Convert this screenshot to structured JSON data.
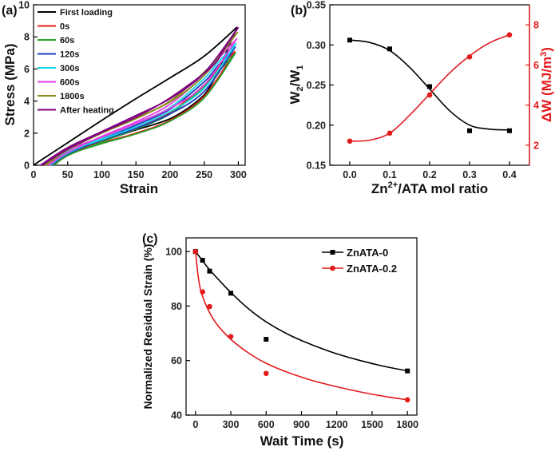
{
  "chart_data": [
    {
      "panel": "(a)",
      "type": "line",
      "title": "",
      "xlabel": "Strain",
      "ylabel": "Stress (MPa)",
      "xlim": [
        0,
        310
      ],
      "ylim": [
        0,
        10
      ],
      "xticks": [
        0,
        50,
        100,
        150,
        200,
        250,
        300
      ],
      "yticks": [
        0,
        2,
        4,
        6,
        8,
        10
      ],
      "legend_position": "top-left",
      "series": [
        {
          "name": "First loading",
          "color": "#000000",
          "load": [
            [
              0,
              0
            ],
            [
              12,
              0.35
            ],
            [
              50,
              1.4
            ],
            [
              100,
              2.8
            ],
            [
              150,
              4.15
            ],
            [
              200,
              5.45
            ],
            [
              250,
              6.8
            ],
            [
              298,
              8.6
            ]
          ],
          "unload": [
            [
              298,
              8.6
            ],
            [
              280,
              6.8
            ],
            [
              260,
              5.0
            ],
            [
              240,
              4.0
            ],
            [
              200,
              2.9
            ],
            [
              150,
              2.2
            ],
            [
              100,
              1.5
            ],
            [
              50,
              0.8
            ],
            [
              20,
              0.2
            ],
            [
              15,
              0
            ]
          ]
        },
        {
          "name": "0s",
          "color": "#e31a1c",
          "load": [
            [
              28,
              0
            ],
            [
              50,
              0.7
            ],
            [
              100,
              1.4
            ],
            [
              150,
              2.0
            ],
            [
              200,
              2.8
            ],
            [
              250,
              4.3
            ],
            [
              295,
              7.1
            ]
          ],
          "unload": [
            [
              295,
              7.1
            ],
            [
              270,
              6.0
            ],
            [
              250,
              5.0
            ],
            [
              200,
              3.3
            ],
            [
              150,
              2.3
            ],
            [
              100,
              1.5
            ],
            [
              50,
              0.6
            ],
            [
              30,
              0
            ]
          ]
        },
        {
          "name": "60s",
          "color": "#2ca02c",
          "load": [
            [
              28,
              0
            ],
            [
              50,
              0.65
            ],
            [
              100,
              1.35
            ],
            [
              150,
              1.95
            ],
            [
              200,
              2.75
            ],
            [
              250,
              4.2
            ],
            [
              296,
              7.0
            ]
          ],
          "unload": [
            [
              296,
              7.0
            ],
            [
              270,
              5.8
            ],
            [
              250,
              4.9
            ],
            [
              200,
              3.2
            ],
            [
              150,
              2.25
            ],
            [
              100,
              1.45
            ],
            [
              50,
              0.6
            ],
            [
              30,
              0
            ]
          ]
        },
        {
          "name": "120s",
          "color": "#1f3bbf",
          "load": [
            [
              24,
              0
            ],
            [
              50,
              0.8
            ],
            [
              100,
              1.55
            ],
            [
              150,
              2.3
            ],
            [
              200,
              3.2
            ],
            [
              250,
              4.6
            ],
            [
              296,
              7.4
            ]
          ],
          "unload": [
            [
              296,
              7.4
            ],
            [
              270,
              6.2
            ],
            [
              250,
              5.2
            ],
            [
              200,
              3.5
            ],
            [
              150,
              2.5
            ],
            [
              100,
              1.6
            ],
            [
              50,
              0.7
            ],
            [
              26,
              0
            ]
          ]
        },
        {
          "name": "300s",
          "color": "#17d7e6",
          "load": [
            [
              22,
              0
            ],
            [
              50,
              0.85
            ],
            [
              100,
              1.6
            ],
            [
              150,
              2.4
            ],
            [
              200,
              3.35
            ],
            [
              250,
              4.8
            ],
            [
              297,
              7.6
            ]
          ],
          "unload": [
            [
              297,
              7.6
            ],
            [
              270,
              6.4
            ],
            [
              250,
              5.4
            ],
            [
              200,
              3.6
            ],
            [
              150,
              2.6
            ],
            [
              100,
              1.7
            ],
            [
              50,
              0.75
            ],
            [
              24,
              0
            ]
          ]
        },
        {
          "name": "600s",
          "color": "#e23fe0",
          "load": [
            [
              20,
              0
            ],
            [
              50,
              0.95
            ],
            [
              100,
              1.75
            ],
            [
              150,
              2.6
            ],
            [
              200,
              3.55
            ],
            [
              250,
              5.0
            ],
            [
              298,
              7.9
            ]
          ],
          "unload": [
            [
              298,
              7.9
            ],
            [
              270,
              6.6
            ],
            [
              250,
              5.6
            ],
            [
              200,
              3.8
            ],
            [
              150,
              2.7
            ],
            [
              100,
              1.8
            ],
            [
              50,
              0.8
            ],
            [
              22,
              0
            ]
          ]
        },
        {
          "name": "1800s",
          "color": "#8a8a1c",
          "load": [
            [
              16,
              0
            ],
            [
              50,
              1.05
            ],
            [
              100,
              2.0
            ],
            [
              150,
              2.95
            ],
            [
              200,
              3.95
            ],
            [
              250,
              5.6
            ],
            [
              299,
              8.3
            ]
          ],
          "unload": [
            [
              299,
              8.3
            ],
            [
              275,
              7.0
            ],
            [
              250,
              5.8
            ],
            [
              200,
              4.0
            ],
            [
              150,
              2.9
            ],
            [
              100,
              2.0
            ],
            [
              50,
              0.95
            ],
            [
              18,
              0
            ]
          ]
        },
        {
          "name": "After heating",
          "color": "#800080",
          "load": [
            [
              10,
              0
            ],
            [
              50,
              1.1
            ],
            [
              100,
              2.1
            ],
            [
              150,
              3.1
            ],
            [
              200,
              4.15
            ],
            [
              250,
              5.75
            ],
            [
              300,
              8.6
            ]
          ],
          "unload": [
            [
              300,
              8.6
            ],
            [
              280,
              7.3
            ],
            [
              260,
              6.1
            ],
            [
              200,
              4.2
            ],
            [
              150,
              3.0
            ],
            [
              100,
              2.05
            ],
            [
              50,
              1.0
            ],
            [
              12,
              0
            ]
          ]
        }
      ]
    },
    {
      "panel": "(b)",
      "type": "line",
      "title": "",
      "xlabel": "Zn2+/ATA mol ratio",
      "ylabel_left": "W2/W1",
      "ylabel_right": "ΔW (MJ/m3)",
      "x": [
        0.0,
        0.1,
        0.2,
        0.3,
        0.4
      ],
      "xticks": [
        "0.0",
        "0.1",
        "0.2",
        "0.3",
        "0.4"
      ],
      "xlim": [
        -0.05,
        0.45
      ],
      "ylim_left": [
        0.15,
        0.35
      ],
      "yticks_left": [
        "0.15",
        "0.20",
        "0.25",
        "0.30",
        "0.35"
      ],
      "ylim_right": [
        1,
        9
      ],
      "yticks_right": [
        "2",
        "4",
        "6",
        "8"
      ],
      "series": [
        {
          "name": "W2/W1",
          "axis": "left",
          "color": "#000000",
          "marker": "square",
          "values": [
            0.306,
            0.295,
            0.248,
            0.193,
            0.193
          ],
          "fit": [
            [
              0.0,
              0.306
            ],
            [
              0.05,
              0.303
            ],
            [
              0.1,
              0.293
            ],
            [
              0.15,
              0.272
            ],
            [
              0.2,
              0.245
            ],
            [
              0.25,
              0.218
            ],
            [
              0.3,
              0.2
            ],
            [
              0.35,
              0.195
            ],
            [
              0.4,
              0.194
            ]
          ]
        },
        {
          "name": "ΔW",
          "axis": "right",
          "color": "#e31a1c",
          "marker": "circle",
          "values": [
            2.2,
            2.6,
            4.5,
            6.4,
            7.5
          ],
          "fit": [
            [
              0.0,
              2.2
            ],
            [
              0.05,
              2.25
            ],
            [
              0.1,
              2.6
            ],
            [
              0.15,
              3.5
            ],
            [
              0.2,
              4.55
            ],
            [
              0.25,
              5.6
            ],
            [
              0.3,
              6.45
            ],
            [
              0.35,
              7.1
            ],
            [
              0.4,
              7.5
            ]
          ]
        }
      ]
    },
    {
      "panel": "(c)",
      "type": "line",
      "title": "",
      "xlabel": "Wait Time (s)",
      "ylabel": "Normalized Residual Strain (%)",
      "xlim": [
        -80,
        1880
      ],
      "ylim": [
        40,
        105
      ],
      "xticks": [
        0,
        300,
        600,
        900,
        1200,
        1500,
        1800
      ],
      "yticks": [
        40,
        60,
        80,
        100
      ],
      "legend_position": "top-right",
      "series": [
        {
          "name": "ZnATA-0",
          "color": "#000000",
          "marker": "square",
          "x": [
            0,
            60,
            120,
            300,
            600,
            1800
          ],
          "values": [
            100,
            96.8,
            92.8,
            84.7,
            67.8,
            56.2
          ],
          "fit": [
            [
              0,
              100
            ],
            [
              60,
              96.6
            ],
            [
              120,
              93.3
            ],
            [
              200,
              89.5
            ],
            [
              300,
              85.0
            ],
            [
              450,
              79.0
            ],
            [
              600,
              74.2
            ],
            [
              800,
              69.3
            ],
            [
              1000,
              65.6
            ],
            [
              1200,
              62.5
            ],
            [
              1400,
              60.0
            ],
            [
              1600,
              57.9
            ],
            [
              1800,
              56.2
            ]
          ]
        },
        {
          "name": "ZnATA-0.2",
          "color": "#e31a1c",
          "marker": "circle",
          "x": [
            0,
            60,
            120,
            300,
            600,
            1800
          ],
          "values": [
            100,
            85.2,
            79.8,
            68.8,
            55.3,
            45.6
          ],
          "fit": [
            [
              0,
              100
            ],
            [
              20,
              92
            ],
            [
              40,
              86.5
            ],
            [
              60,
              83.6
            ],
            [
              100,
              79.3
            ],
            [
              150,
              75.3
            ],
            [
              200,
              72.3
            ],
            [
              300,
              67.8
            ],
            [
              450,
              62.8
            ],
            [
              600,
              59.0
            ],
            [
              800,
              55.4
            ],
            [
              1000,
              52.6
            ],
            [
              1200,
              50.4
            ],
            [
              1400,
              48.5
            ],
            [
              1600,
              46.9
            ],
            [
              1800,
              45.6
            ]
          ]
        }
      ]
    }
  ],
  "labels": {
    "panel_a": "(a)",
    "panel_b": "(b)",
    "panel_c": "(c)",
    "a_ylabel": "Stress (MPa)",
    "a_xlabel": "Strain",
    "b_xlabel_main": "Zn",
    "b_xlabel_sup": "2+",
    "b_xlabel_tail": "/ATA mol ratio",
    "b_ylabel_left_W": "W",
    "b_ylabel_left_sub2": "2",
    "b_ylabel_left_slash": "/W",
    "b_ylabel_left_sub1": "1",
    "b_ylabel_right_main": "ΔW (MJ/m",
    "b_ylabel_right_sup": "3",
    "b_ylabel_right_close": ")",
    "c_xlabel": "Wait Time (s)",
    "c_ylabel": "Normalized Residual Strain (%)"
  }
}
